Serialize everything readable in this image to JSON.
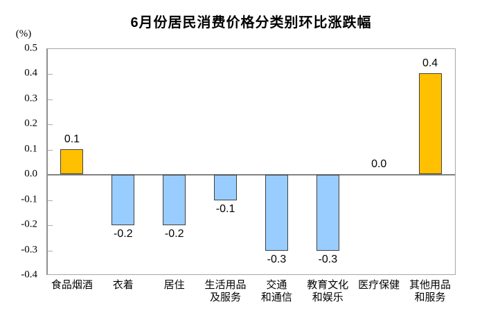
{
  "chart_data": {
    "type": "bar",
    "title": "6月份居民消费价格分类别环比涨跌幅",
    "unit_label": "(%)",
    "categories": [
      "食品烟酒",
      "衣着",
      "居住",
      "生活用品\n及服务",
      "交通\n和通信",
      "教育文化\n和娱乐",
      "医疗保健",
      "其他用品\n和服务"
    ],
    "values": [
      0.1,
      -0.2,
      -0.2,
      -0.1,
      -0.3,
      -0.3,
      0.0,
      0.4
    ],
    "value_labels": [
      "0.1",
      "-0.2",
      "-0.2",
      "-0.1",
      "-0.3",
      "-0.3",
      "0.0",
      "0.4"
    ],
    "ylim": [
      -0.4,
      0.5
    ],
    "ytick_labels": [
      "0.5",
      "0.4",
      "0.3",
      "0.2",
      "0.1",
      "0.0",
      "-0.1",
      "-0.2",
      "-0.3",
      "-0.4"
    ],
    "ytick_values": [
      0.5,
      0.4,
      0.3,
      0.2,
      0.1,
      0.0,
      -0.1,
      -0.2,
      -0.3,
      -0.4
    ],
    "grid": false,
    "legend": false,
    "colors": {
      "positive_bar": "#FFC000",
      "negative_bar": "#99CCFF",
      "bar_border": "#404040",
      "zero_line": "#808080",
      "plot_border": "#A6A6A6",
      "tick_mark": "#A9A9A9",
      "text": "#000000"
    }
  }
}
